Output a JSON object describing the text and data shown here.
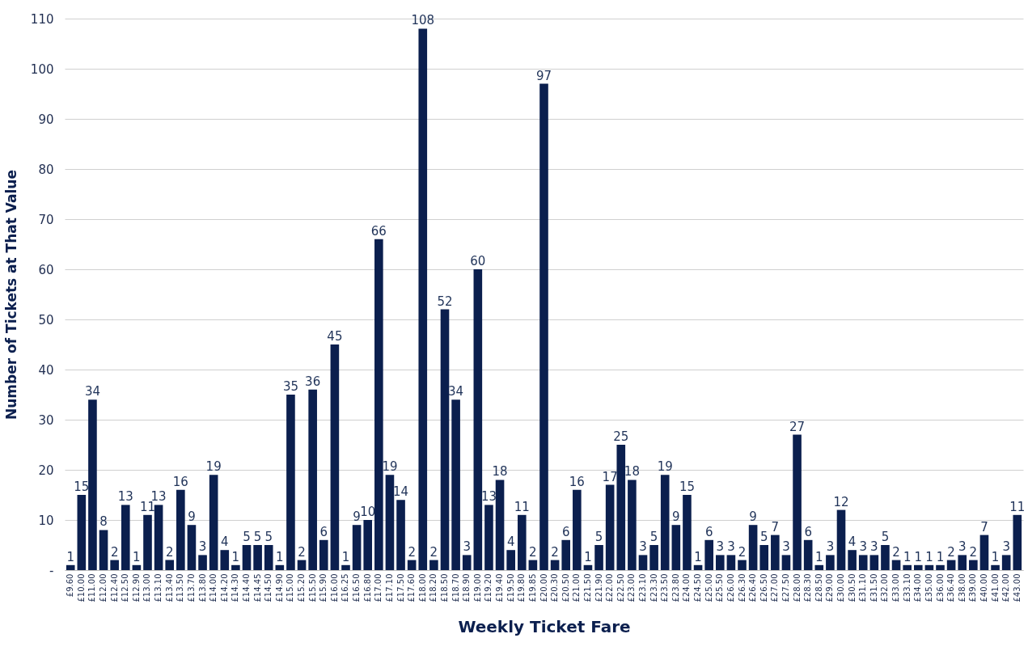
{
  "chart_data": {
    "type": "bar",
    "xlabel": "Weekly Ticket Fare",
    "ylabel": "Number of Tickets at That Value",
    "categories": [
      "£9.60",
      "£10.00",
      "£11.00",
      "£12.00",
      "£12.40",
      "£12.50",
      "£12.90",
      "£13.00",
      "£13.10",
      "£13.40",
      "£13.50",
      "£13.70",
      "£13.80",
      "£14.00",
      "£14.20",
      "£14.30",
      "£14.40",
      "£14.45",
      "£14.50",
      "£14.90",
      "£15.00",
      "£15.20",
      "£15.50",
      "£15.90",
      "£16.00",
      "£16.25",
      "£16.50",
      "£16.80",
      "£17.00",
      "£17.10",
      "£17.50",
      "£17.60",
      "£18.00",
      "£18.20",
      "£18.50",
      "£18.70",
      "£18.90",
      "£19.00",
      "£19.20",
      "£19.40",
      "£19.50",
      "£19.80",
      "£19.85",
      "£20.00",
      "£20.30",
      "£20.50",
      "£21.00",
      "£21.50",
      "£21.90",
      "£22.00",
      "£22.50",
      "£23.00",
      "£23.10",
      "£23.30",
      "£23.50",
      "£23.80",
      "£24.00",
      "£24.50",
      "£25.00",
      "£25.50",
      "£26.00",
      "£26.30",
      "£26.40",
      "£26.50",
      "£27.00",
      "£27.50",
      "£28.00",
      "£28.30",
      "£28.50",
      "£29.00",
      "£30.00",
      "£30.50",
      "£31.10",
      "£31.50",
      "£32.00",
      "£33.00",
      "£33.10",
      "£34.00",
      "£35.00",
      "£36.00",
      "£36.40",
      "£38.00",
      "£39.00",
      "£40.00",
      "£41.00",
      "£42.00",
      "£43.00"
    ],
    "values": [
      1,
      15,
      34,
      8,
      2,
      13,
      1,
      11,
      13,
      2,
      16,
      9,
      3,
      19,
      4,
      1,
      5,
      5,
      5,
      1,
      35,
      2,
      36,
      6,
      45,
      1,
      9,
      10,
      66,
      19,
      14,
      2,
      108,
      2,
      52,
      34,
      3,
      60,
      13,
      18,
      4,
      11,
      2,
      97,
      2,
      6,
      16,
      1,
      5,
      17,
      25,
      18,
      3,
      5,
      19,
      9,
      15,
      1,
      6,
      3,
      3,
      2,
      9,
      5,
      7,
      3,
      27,
      6,
      1,
      3,
      12,
      4,
      3,
      3,
      5,
      2,
      1,
      1,
      1,
      1,
      2,
      3,
      2,
      7,
      1,
      3,
      11
    ],
    "color": "#0b1f4e",
    "ylim": [
      0,
      110
    ],
    "yticks": [
      {
        "value": 0,
        "label": "-"
      },
      10,
      20,
      30,
      40,
      50,
      60,
      70,
      80,
      90,
      100,
      110
    ],
    "grid": "y",
    "data_labels": true
  }
}
